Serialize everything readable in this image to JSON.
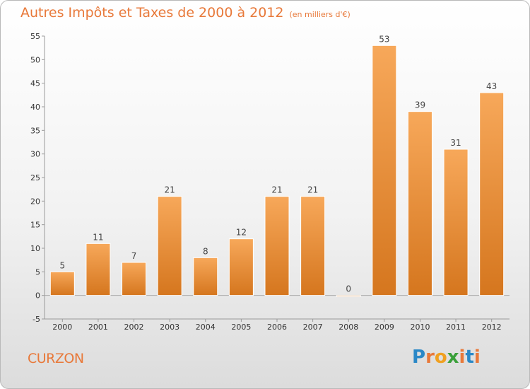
{
  "header": {
    "title": "Autres Impôts et Taxes de 2000 à 2012",
    "unit": "(en milliers d'€)"
  },
  "footer": {
    "commune": "CURZON",
    "logo_text": "Proxiti"
  },
  "colors": {
    "accent": "#e8793a",
    "bar_light": "#f7a85a",
    "bar_dark": "#d5761e"
  },
  "chart_data": {
    "type": "bar",
    "title": "Autres Impôts et Taxes de 2000 à 2012",
    "subtitle": "(en milliers d'€)",
    "xlabel": "",
    "ylabel": "",
    "categories": [
      "2000",
      "2001",
      "2002",
      "2003",
      "2004",
      "2005",
      "2006",
      "2007",
      "2008",
      "2009",
      "2010",
      "2011",
      "2012"
    ],
    "values": [
      5,
      11,
      7,
      21,
      8,
      12,
      21,
      21,
      0,
      53,
      39,
      31,
      43
    ],
    "ylim": [
      -5,
      55
    ],
    "yticks": [
      -5,
      0,
      5,
      10,
      15,
      20,
      25,
      30,
      35,
      40,
      45,
      50,
      55
    ],
    "grid": false,
    "legend": "none"
  }
}
